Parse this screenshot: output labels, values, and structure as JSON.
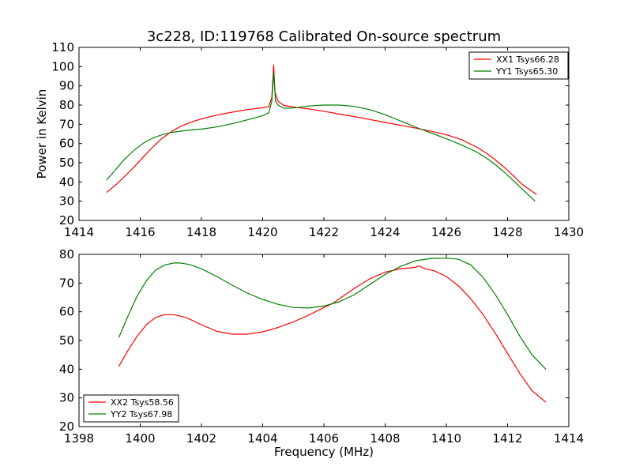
{
  "page": {
    "title": "3c228, ID:119768 Calibrated On-source spectrum"
  },
  "chart_data": [
    {
      "type": "line",
      "title": "3c228, ID:119768 Calibrated On-source spectrum",
      "xlabel": "",
      "ylabel": "Power in Kelvin",
      "xlim": [
        1414,
        1430
      ],
      "ylim": [
        20,
        110
      ],
      "xticks": [
        "1414",
        "1416",
        "1418",
        "1420",
        "1422",
        "1424",
        "1426",
        "1428",
        "1430"
      ],
      "yticks": [
        "20",
        "30",
        "40",
        "50",
        "60",
        "70",
        "80",
        "90",
        "100",
        "110"
      ],
      "grid": false,
      "legend_position": "top-right",
      "series": [
        {
          "name": "XX1 Tsys66.28",
          "color": "#ff0000",
          "x": [
            1414.9,
            1415.2,
            1415.5,
            1415.8,
            1416.1,
            1416.4,
            1416.7,
            1417.0,
            1417.3,
            1417.6,
            1418.0,
            1418.5,
            1419.0,
            1419.5,
            1420.0,
            1420.2,
            1420.3,
            1420.36,
            1420.4,
            1420.5,
            1420.7,
            1421.0,
            1421.5,
            1422.0,
            1422.5,
            1423.0,
            1423.5,
            1424.0,
            1424.5,
            1425.0,
            1425.5,
            1426.0,
            1426.5,
            1427.0,
            1427.3,
            1427.6,
            1427.9,
            1428.2,
            1428.5,
            1428.95
          ],
          "y": [
            34.5,
            38.5,
            43.0,
            47.8,
            53.0,
            58.0,
            62.5,
            66.0,
            68.8,
            70.8,
            72.8,
            74.8,
            76.3,
            77.6,
            78.6,
            79.2,
            84,
            101,
            87,
            82,
            79.8,
            79.0,
            78.0,
            76.8,
            75.3,
            74.0,
            72.5,
            71.0,
            69.5,
            68.0,
            66.4,
            64.6,
            62.0,
            58.0,
            55.0,
            51.5,
            47.5,
            43.0,
            38.5,
            33.5
          ]
        },
        {
          "name": "YY1 Tsys65.30",
          "color": "#008000",
          "x": [
            1414.9,
            1415.2,
            1415.5,
            1415.8,
            1416.1,
            1416.4,
            1416.7,
            1417.0,
            1417.5,
            1418.0,
            1418.5,
            1419.0,
            1419.5,
            1420.0,
            1420.2,
            1420.3,
            1420.36,
            1420.42,
            1420.5,
            1420.7,
            1421.0,
            1421.5,
            1422.0,
            1422.5,
            1423.0,
            1423.5,
            1424.0,
            1424.5,
            1425.0,
            1425.5,
            1426.0,
            1426.5,
            1427.0,
            1427.3,
            1427.6,
            1427.9,
            1428.2,
            1428.5,
            1428.9
          ],
          "y": [
            41.0,
            46.5,
            52.0,
            56.5,
            60.2,
            62.8,
            64.5,
            65.7,
            66.8,
            67.5,
            68.6,
            70.3,
            72.3,
            74.5,
            76.0,
            82,
            97,
            82,
            80,
            78.3,
            78.5,
            79.5,
            80.0,
            80.0,
            79.3,
            77.6,
            75.0,
            71.8,
            68.5,
            65.5,
            62.5,
            59.2,
            55.5,
            52.5,
            49.0,
            45.0,
            40.5,
            36.0,
            30.0
          ]
        }
      ]
    },
    {
      "type": "line",
      "title": "",
      "xlabel": "Frequency (MHz)",
      "ylabel": "",
      "xlim": [
        1398,
        1414
      ],
      "ylim": [
        20,
        80
      ],
      "xticks": [
        "1398",
        "1400",
        "1402",
        "1404",
        "1406",
        "1408",
        "1410",
        "1412",
        "1414"
      ],
      "yticks": [
        "20",
        "30",
        "40",
        "50",
        "60",
        "70",
        "80"
      ],
      "grid": false,
      "legend_position": "bottom-left",
      "series": [
        {
          "name": "XX2 Tsys58.56",
          "color": "#ff0000",
          "x": [
            1399.3,
            1399.6,
            1399.9,
            1400.2,
            1400.5,
            1400.8,
            1401.1,
            1401.5,
            1402.0,
            1402.5,
            1403.0,
            1403.5,
            1404.0,
            1404.5,
            1405.0,
            1405.5,
            1406.0,
            1406.3,
            1406.5,
            1407.0,
            1407.5,
            1408.0,
            1408.5,
            1409.0,
            1409.1,
            1409.3,
            1409.6,
            1410.0,
            1410.4,
            1410.8,
            1411.2,
            1411.6,
            1412.0,
            1412.4,
            1412.8,
            1413.25
          ],
          "y": [
            41.0,
            46.5,
            51.5,
            55.5,
            58.0,
            59.0,
            59.0,
            58.0,
            55.5,
            53.2,
            52.2,
            52.2,
            53.0,
            54.5,
            56.5,
            58.8,
            61.5,
            63.0,
            64.5,
            68.2,
            71.5,
            73.8,
            75.0,
            75.5,
            76.0,
            75.0,
            74.3,
            72.3,
            69.0,
            64.5,
            59.0,
            52.5,
            45.5,
            38.5,
            32.5,
            28.5
          ]
        },
        {
          "name": "YY2 Tsys67.98",
          "color": "#008000",
          "x": [
            1399.3,
            1399.6,
            1399.9,
            1400.2,
            1400.5,
            1400.8,
            1401.1,
            1401.3,
            1401.6,
            1402.0,
            1402.5,
            1403.0,
            1403.5,
            1404.0,
            1404.5,
            1405.0,
            1405.5,
            1406.0,
            1406.5,
            1407.0,
            1407.5,
            1408.0,
            1408.5,
            1409.0,
            1409.5,
            1410.0,
            1410.4,
            1410.8,
            1411.2,
            1411.6,
            1412.0,
            1412.4,
            1412.8,
            1413.25
          ],
          "y": [
            51.0,
            58.5,
            65.5,
            70.8,
            74.5,
            76.3,
            77.0,
            77.0,
            76.5,
            75.0,
            72.3,
            69.3,
            66.5,
            64.3,
            62.6,
            61.5,
            61.3,
            62.0,
            63.5,
            66.0,
            69.5,
            73.0,
            75.8,
            77.8,
            78.6,
            78.7,
            78.3,
            76.3,
            72.0,
            66.0,
            59.0,
            51.5,
            45.0,
            40.0
          ]
        }
      ]
    }
  ]
}
